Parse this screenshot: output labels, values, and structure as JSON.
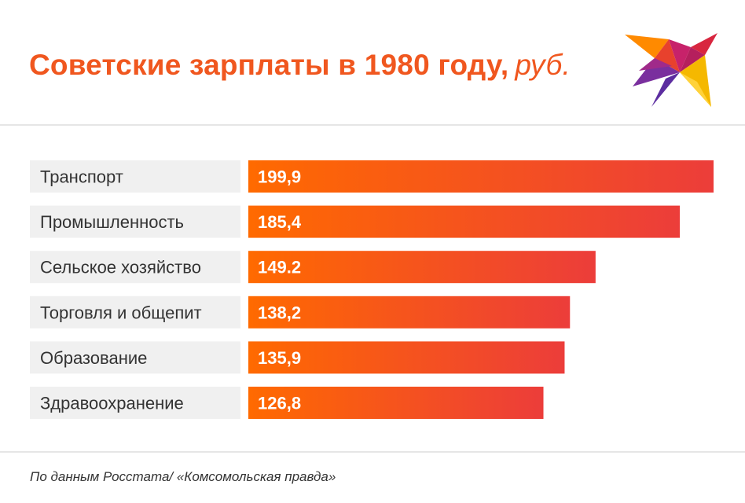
{
  "header": {
    "title": "Советские зарплаты в 1980 году,",
    "unit": "руб."
  },
  "footer": {
    "source": "По данным Росстата/ «Комсомольская правда»"
  },
  "colors": {
    "accent": "#f0571f",
    "bar_start": "#ff6a00",
    "bar_end": "#ec3d3a",
    "label_bg": "#f0f0f0"
  },
  "chart_data": {
    "type": "bar",
    "orientation": "horizontal",
    "categories": [
      "Транспорт",
      "Промышленность",
      "Сельское хозяйство",
      "Торговля и общепит",
      "Образование",
      "Здравоохранение"
    ],
    "values": [
      199.9,
      185.4,
      149.2,
      138.2,
      135.9,
      126.8
    ],
    "value_labels": [
      "199,9",
      "185,4",
      "149.2",
      "138,2",
      "135,9",
      "126,8"
    ],
    "title": "Советские зарплаты в 1980 году, руб.",
    "xlabel": "",
    "ylabel": "",
    "grid": false,
    "legend": "none"
  }
}
